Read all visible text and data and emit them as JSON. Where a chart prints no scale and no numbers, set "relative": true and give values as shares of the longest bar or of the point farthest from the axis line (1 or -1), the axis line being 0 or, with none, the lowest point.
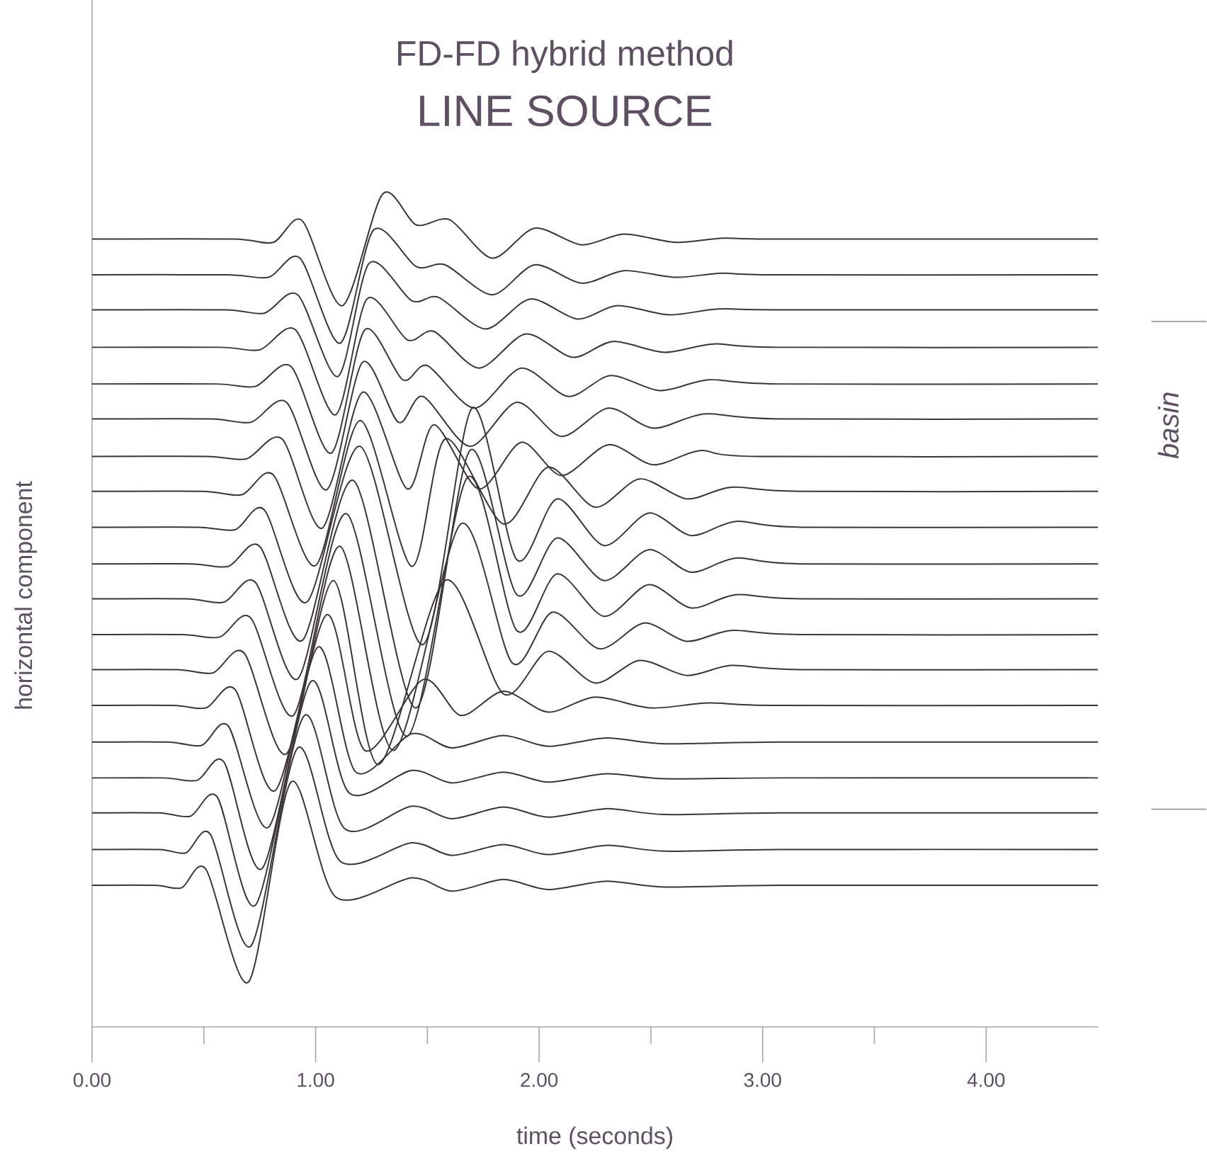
{
  "chart_data": {
    "type": "line",
    "title": "FD-FD hybrid method",
    "subtitle": "LINE SOURCE",
    "xlabel": "time (seconds)",
    "ylabel": "horizontal component",
    "annotations": [
      "basin"
    ],
    "relative": true,
    "xlim": [
      0,
      4.5
    ],
    "xticks": [
      {
        "value": 0,
        "label": "0.00"
      },
      {
        "value": 0.5,
        "label": null
      },
      {
        "value": 1,
        "label": "1.00"
      },
      {
        "value": 1.5,
        "label": null
      },
      {
        "value": 2,
        "label": "2.00"
      },
      {
        "value": 2.5,
        "label": null
      },
      {
        "value": 3,
        "label": "3.00"
      },
      {
        "value": 3.5,
        "label": null
      },
      {
        "value": 4,
        "label": "4.00"
      }
    ],
    "series": [
      {
        "color": "#3d3438",
        "x": [
          0,
          0.63,
          0.81,
          0.94,
          1.12,
          1.3,
          1.45,
          1.6,
          1.79,
          1.98,
          2.19,
          2.38,
          2.61,
          2.82,
          3.07,
          4.5
        ],
        "values": [
          0.946,
          0.946,
          0.942,
          0.968,
          0.866,
          1.0,
          0.963,
          0.969,
          0.923,
          0.959,
          0.939,
          0.952,
          0.942,
          0.947,
          0.946,
          0.946
        ]
      },
      {
        "color": "#3d3438",
        "x": [
          0,
          0.61,
          0.79,
          0.93,
          1.11,
          1.26,
          1.45,
          1.58,
          1.79,
          1.98,
          2.19,
          2.38,
          2.61,
          2.82,
          3.07,
          4.5
        ],
        "values": [
          0.903,
          0.903,
          0.9,
          0.923,
          0.821,
          0.957,
          0.913,
          0.915,
          0.879,
          0.915,
          0.893,
          0.908,
          0.9,
          0.905,
          0.903,
          0.903
        ]
      },
      {
        "color": "#3d3438",
        "x": [
          0,
          0.59,
          0.77,
          0.92,
          1.1,
          1.24,
          1.43,
          1.55,
          1.76,
          1.96,
          2.17,
          2.35,
          2.58,
          2.8,
          3.07,
          4.5
        ],
        "values": [
          0.861,
          0.861,
          0.857,
          0.879,
          0.781,
          0.917,
          0.872,
          0.876,
          0.838,
          0.874,
          0.85,
          0.866,
          0.855,
          0.862,
          0.861,
          0.861
        ]
      },
      {
        "color": "#3d3438",
        "x": [
          0,
          0.57,
          0.75,
          0.91,
          1.09,
          1.23,
          1.41,
          1.53,
          1.73,
          1.94,
          2.15,
          2.33,
          2.56,
          2.78,
          3.07,
          4.5
        ],
        "values": [
          0.816,
          0.816,
          0.813,
          0.837,
          0.735,
          0.874,
          0.825,
          0.835,
          0.791,
          0.832,
          0.804,
          0.823,
          0.81,
          0.82,
          0.816,
          0.816
        ]
      },
      {
        "color": "#3d3438",
        "x": [
          0,
          0.55,
          0.73,
          0.89,
          1.07,
          1.22,
          1.39,
          1.5,
          1.71,
          1.92,
          2.13,
          2.32,
          2.54,
          2.76,
          3.07,
          4.5
        ],
        "values": [
          0.772,
          0.772,
          0.769,
          0.793,
          0.689,
          0.837,
          0.777,
          0.794,
          0.743,
          0.791,
          0.757,
          0.782,
          0.764,
          0.777,
          0.772,
          0.772
        ]
      },
      {
        "color": "#3d3438",
        "x": [
          0,
          0.53,
          0.71,
          0.87,
          1.05,
          1.21,
          1.37,
          1.48,
          1.69,
          1.9,
          2.1,
          2.31,
          2.51,
          2.74,
          3.07,
          4.5
        ],
        "values": [
          0.73,
          0.73,
          0.726,
          0.75,
          0.645,
          0.798,
          0.726,
          0.757,
          0.697,
          0.75,
          0.709,
          0.743,
          0.719,
          0.736,
          0.73,
          0.73
        ]
      },
      {
        "color": "#3d3438",
        "x": [
          0,
          0.51,
          0.69,
          0.85,
          1.03,
          1.21,
          1.41,
          1.53,
          1.73,
          1.92,
          2.1,
          2.31,
          2.51,
          2.72,
          2.97,
          4.5
        ],
        "values": [
          0.685,
          0.685,
          0.682,
          0.706,
          0.599,
          0.762,
          0.646,
          0.723,
          0.646,
          0.702,
          0.662,
          0.699,
          0.675,
          0.692,
          0.685,
          0.685
        ]
      },
      {
        "color": "#3d3438",
        "x": [
          0,
          0.49,
          0.67,
          0.81,
          1.0,
          1.2,
          1.43,
          1.58,
          1.84,
          2.04,
          2.25,
          2.45,
          2.66,
          2.86,
          3.17,
          4.5
        ],
        "values": [
          0.643,
          0.643,
          0.639,
          0.663,
          0.554,
          0.728,
          0.553,
          0.706,
          0.604,
          0.672,
          0.624,
          0.658,
          0.634,
          0.648,
          0.643,
          0.643
        ]
      },
      {
        "color": "#3d3438",
        "x": [
          0,
          0.47,
          0.64,
          0.77,
          0.96,
          1.2,
          1.48,
          1.7,
          1.9,
          2.08,
          2.29,
          2.49,
          2.68,
          2.88,
          3.17,
          4.5
        ],
        "values": [
          0.6,
          0.6,
          0.597,
          0.621,
          0.51,
          0.697,
          0.459,
          0.743,
          0.561,
          0.634,
          0.578,
          0.617,
          0.59,
          0.607,
          0.6,
          0.6
        ]
      },
      {
        "color": "#3d3438",
        "x": [
          0,
          0.44,
          0.61,
          0.75,
          0.94,
          1.17,
          1.45,
          1.69,
          1.9,
          2.08,
          2.29,
          2.49,
          2.68,
          2.88,
          3.17,
          4.5
        ],
        "values": [
          0.556,
          0.556,
          0.553,
          0.577,
          0.464,
          0.656,
          0.383,
          0.692,
          0.519,
          0.587,
          0.536,
          0.573,
          0.546,
          0.563,
          0.556,
          0.556
        ]
      },
      {
        "color": "#3d3438",
        "x": [
          0,
          0.42,
          0.59,
          0.73,
          0.92,
          1.14,
          1.41,
          1.68,
          1.9,
          2.08,
          2.29,
          2.49,
          2.68,
          2.88,
          3.17,
          4.5
        ],
        "values": [
          0.514,
          0.514,
          0.51,
          0.534,
          0.418,
          0.616,
          0.349,
          0.66,
          0.476,
          0.544,
          0.493,
          0.531,
          0.503,
          0.519,
          0.514,
          0.514
        ]
      },
      {
        "color": "#3d3438",
        "x": [
          0,
          0.4,
          0.57,
          0.71,
          0.9,
          1.11,
          1.35,
          1.65,
          1.88,
          2.06,
          2.27,
          2.47,
          2.66,
          2.86,
          3.17,
          4.5
        ],
        "values": [
          0.471,
          0.471,
          0.468,
          0.491,
          0.374,
          0.577,
          0.332,
          0.604,
          0.437,
          0.498,
          0.454,
          0.485,
          0.463,
          0.476,
          0.471,
          0.471
        ]
      },
      {
        "color": "#3d3438",
        "x": [
          0,
          0.38,
          0.54,
          0.68,
          0.87,
          1.08,
          1.28,
          1.58,
          1.84,
          2.04,
          2.25,
          2.45,
          2.66,
          2.86,
          3.17,
          4.5
        ],
        "values": [
          0.429,
          0.429,
          0.425,
          0.449,
          0.328,
          0.536,
          0.315,
          0.536,
          0.4,
          0.451,
          0.413,
          0.44,
          0.422,
          0.434,
          0.429,
          0.429
        ]
      },
      {
        "color": "#3d3438",
        "x": [
          0,
          0.36,
          0.51,
          0.64,
          0.82,
          1.05,
          1.22,
          1.48,
          1.65,
          1.84,
          2.04,
          2.25,
          2.5,
          2.76,
          3.07,
          4.5
        ],
        "values": [
          0.386,
          0.386,
          0.383,
          0.405,
          0.284,
          0.495,
          0.332,
          0.417,
          0.374,
          0.403,
          0.378,
          0.396,
          0.383,
          0.389,
          0.386,
          0.386
        ]
      },
      {
        "color": "#3d3438",
        "x": [
          0,
          0.34,
          0.49,
          0.61,
          0.79,
          1.01,
          1.18,
          1.43,
          1.61,
          1.84,
          2.04,
          2.3,
          2.56,
          3.07,
          4.5
        ],
        "values": [
          0.342,
          0.342,
          0.338,
          0.361,
          0.24,
          0.456,
          0.306,
          0.352,
          0.335,
          0.35,
          0.337,
          0.347,
          0.34,
          0.342,
          0.342
        ]
      },
      {
        "color": "#3d3438",
        "x": [
          0,
          0.32,
          0.47,
          0.59,
          0.76,
          0.98,
          1.15,
          1.43,
          1.61,
          1.84,
          2.04,
          2.3,
          2.56,
          3.07,
          4.5
        ],
        "values": [
          0.299,
          0.299,
          0.296,
          0.318,
          0.19,
          0.415,
          0.281,
          0.308,
          0.293,
          0.306,
          0.294,
          0.304,
          0.298,
          0.299,
          0.299
        ]
      },
      {
        "color": "#3d3438",
        "x": [
          0,
          0.3,
          0.44,
          0.56,
          0.73,
          0.95,
          1.13,
          1.43,
          1.61,
          1.84,
          2.04,
          2.3,
          2.56,
          3.07,
          4.5
        ],
        "values": [
          0.257,
          0.257,
          0.253,
          0.276,
          0.146,
          0.374,
          0.238,
          0.265,
          0.25,
          0.264,
          0.252,
          0.262,
          0.255,
          0.257,
          0.257
        ]
      },
      {
        "color": "#3d3438",
        "x": [
          0,
          0.3,
          0.42,
          0.53,
          0.71,
          0.92,
          1.11,
          1.43,
          1.61,
          1.84,
          2.04,
          2.3,
          2.56,
          3.07,
          4.5
        ],
        "values": [
          0.213,
          0.213,
          0.209,
          0.231,
          0.097,
          0.335,
          0.199,
          0.221,
          0.206,
          0.219,
          0.207,
          0.218,
          0.211,
          0.213,
          0.213
        ]
      },
      {
        "color": "#3d3438",
        "x": [
          0,
          0.28,
          0.4,
          0.51,
          0.7,
          0.89,
          1.09,
          1.43,
          1.61,
          1.84,
          2.04,
          2.3,
          2.56,
          3.07,
          4.5
        ],
        "values": [
          0.17,
          0.17,
          0.167,
          0.189,
          0.054,
          0.294,
          0.156,
          0.179,
          0.163,
          0.177,
          0.165,
          0.175,
          0.168,
          0.17,
          0.17
        ]
      }
    ]
  }
}
